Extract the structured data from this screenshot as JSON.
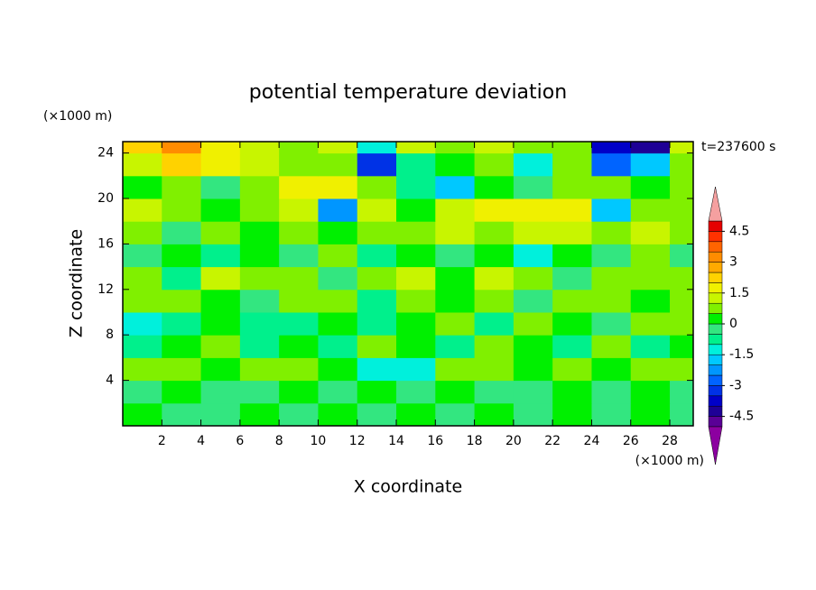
{
  "chart_data": {
    "type": "heatmap",
    "title": "potential temperature deviation",
    "xlabel": "X coordinate",
    "ylabel": "Z coordinate",
    "x_unit": "(×1000 m)",
    "y_unit": "(×1000 m)",
    "annotation": "t=237600 s",
    "xlim": [
      0,
      29.2
    ],
    "ylim": [
      0,
      25
    ],
    "xticks": [
      2,
      4,
      6,
      8,
      10,
      12,
      14,
      16,
      18,
      20,
      22,
      24,
      26,
      28
    ],
    "yticks": [
      4,
      8,
      12,
      16,
      20,
      24
    ],
    "x_edges": [
      0,
      2,
      4,
      6,
      8,
      10,
      12,
      14,
      16,
      18,
      20,
      22,
      24,
      26,
      28,
      29.2
    ],
    "z_edges": [
      0,
      2,
      4,
      6,
      8,
      10,
      12,
      14,
      16,
      18,
      20,
      22,
      24,
      25
    ],
    "z": [
      [
        0.2,
        -0.3,
        -0.2,
        0.2,
        -0.3,
        0.2,
        -0.2,
        0.2,
        -0.3,
        0.2,
        -0.3,
        0.2,
        -0.2,
        0.2,
        -0.3
      ],
      [
        -0.3,
        0.2,
        -0.3,
        -0.2,
        0.2,
        -0.3,
        0.2,
        -0.2,
        0.2,
        -0.3,
        -0.2,
        0.2,
        -0.3,
        0.2,
        -0.2
      ],
      [
        0.6,
        0.7,
        0.3,
        0.6,
        0.8,
        0.4,
        -1.2,
        -1.3,
        0.5,
        0.7,
        0.4,
        0.6,
        0.3,
        0.7,
        0.5
      ],
      [
        -0.7,
        0.3,
        0.8,
        -0.6,
        0.4,
        -0.8,
        0.6,
        0.2,
        -0.7,
        0.6,
        0.3,
        -0.6,
        0.7,
        -0.8,
        0.4
      ],
      [
        -1.1,
        -0.8,
        0.3,
        -0.6,
        -0.9,
        0.4,
        -0.7,
        0.3,
        0.7,
        -0.6,
        0.8,
        0.4,
        -0.3,
        0.6,
        0.9
      ],
      [
        0.6,
        0.9,
        0.4,
        -0.3,
        0.7,
        0.5,
        -0.6,
        0.6,
        0.3,
        0.8,
        -0.4,
        0.5,
        0.7,
        0.3,
        0.6
      ],
      [
        0.8,
        -0.6,
        1.1,
        0.7,
        0.9,
        -0.5,
        0.6,
        1.0,
        0.4,
        1.2,
        0.7,
        -0.4,
        0.8,
        0.5,
        0.9
      ],
      [
        -0.4,
        0.3,
        -0.6,
        0.4,
        -0.3,
        0.5,
        -0.7,
        0.3,
        -0.5,
        0.4,
        -1.2,
        0.3,
        -0.4,
        0.5,
        -0.3
      ],
      [
        0.5,
        -0.4,
        0.6,
        0.3,
        0.8,
        0.4,
        0.6,
        0.9,
        1.1,
        0.8,
        1.3,
        1.2,
        0.9,
        1.1,
        0.7
      ],
      [
        1.2,
        0.5,
        0.3,
        0.6,
        1.4,
        -2.2,
        1.1,
        0.4,
        1.3,
        1.6,
        1.8,
        1.5,
        -1.8,
        0.9,
        0.6
      ],
      [
        0.4,
        0.8,
        -0.5,
        0.6,
        1.6,
        1.9,
        0.5,
        -0.6,
        -1.8,
        0.3,
        -0.4,
        0.5,
        0.7,
        0.3,
        0.5
      ],
      [
        1.4,
        2.2,
        1.8,
        1.1,
        0.5,
        0.8,
        -3.2,
        -0.9,
        0.4,
        0.6,
        -1.3,
        0.5,
        -2.6,
        -1.8,
        0.9
      ],
      [
        2.2,
        3.2,
        1.6,
        1.4,
        0.8,
        1.2,
        -1.5,
        1.3,
        0.6,
        1.1,
        0.7,
        0.8,
        -3.6,
        -4.2,
        1.4
      ]
    ],
    "levels": [
      -5,
      -4.5,
      -4,
      -3.5,
      -3,
      -2.5,
      -2,
      -1.5,
      -1,
      -0.5,
      0,
      0.5,
      1,
      1.5,
      2,
      2.5,
      3,
      3.5,
      4,
      4.5,
      5
    ],
    "colors": [
      "#5a0096",
      "#1e0096",
      "#0000c8",
      "#0032e6",
      "#0064ff",
      "#0096ff",
      "#00c8ff",
      "#00f0dc",
      "#00f08c",
      "#33e680",
      "#00f000",
      "#80f000",
      "#c8f500",
      "#f0f000",
      "#ffd200",
      "#ffaa00",
      "#ff8c00",
      "#ff6400",
      "#ff3200",
      "#e60000"
    ],
    "over_color": "#f5a0a0",
    "under_color": "#8c00a0",
    "cbar_ticks": [
      -4.5,
      -3,
      -1.5,
      0,
      1.5,
      3,
      4.5
    ]
  }
}
